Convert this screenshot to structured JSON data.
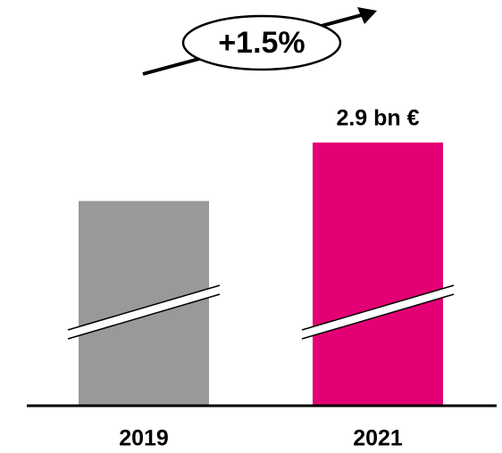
{
  "chart_data": {
    "type": "bar",
    "categories": [
      "2019",
      "2021"
    ],
    "values": [
      2.86,
      2.9
    ],
    "value_labels": [
      null,
      "2.9 bn €"
    ],
    "colors": [
      "#999999",
      "#e20074"
    ],
    "ylim": [
      2.72,
      2.92
    ],
    "annotation": "+1.5%"
  }
}
